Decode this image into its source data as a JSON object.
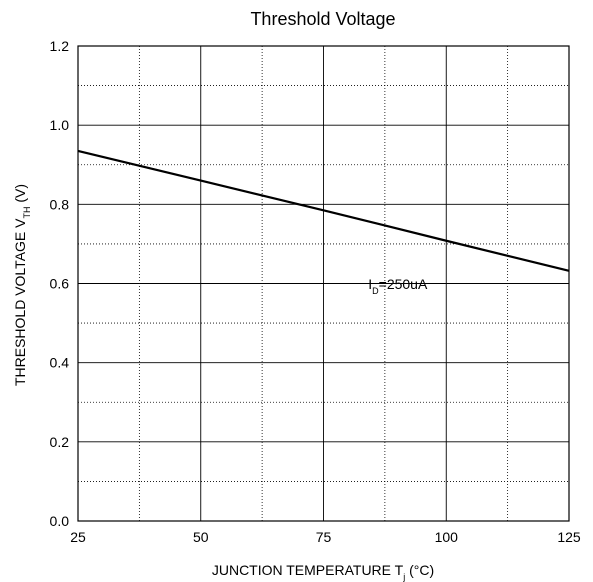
{
  "chart_data": {
    "type": "line",
    "title": "Threshold Voltage",
    "xlabel": {
      "main": "JUNCTION TEMPERATURE T",
      "sub": "j",
      "unit": " (°C)"
    },
    "ylabel": {
      "main": "THRESHOLD VOLTAGE V",
      "sub": "TH",
      "unit": " (V)"
    },
    "xlim": [
      25,
      125
    ],
    "ylim": [
      0.0,
      1.2
    ],
    "x_ticks": [
      25,
      50,
      75,
      100,
      125
    ],
    "x_tick_labels": [
      "25",
      "50",
      "75",
      "100",
      "125"
    ],
    "y_ticks": [
      0.0,
      0.2,
      0.4,
      0.6,
      0.8,
      1.0,
      1.2
    ],
    "y_tick_labels": [
      "0.0",
      "0.2",
      "0.4",
      "0.6",
      "0.8",
      "1.0",
      "1.2"
    ],
    "grid": true,
    "series": [
      {
        "x": [
          25,
          50,
          75,
          100,
          125
        ],
        "y": [
          0.935,
          0.86,
          0.785,
          0.708,
          0.632
        ]
      }
    ],
    "annotations": [
      {
        "text_main": "I",
        "text_sub": "D",
        "text_rest": "=250uA",
        "x": 100,
        "y": 0.708
      }
    ]
  }
}
